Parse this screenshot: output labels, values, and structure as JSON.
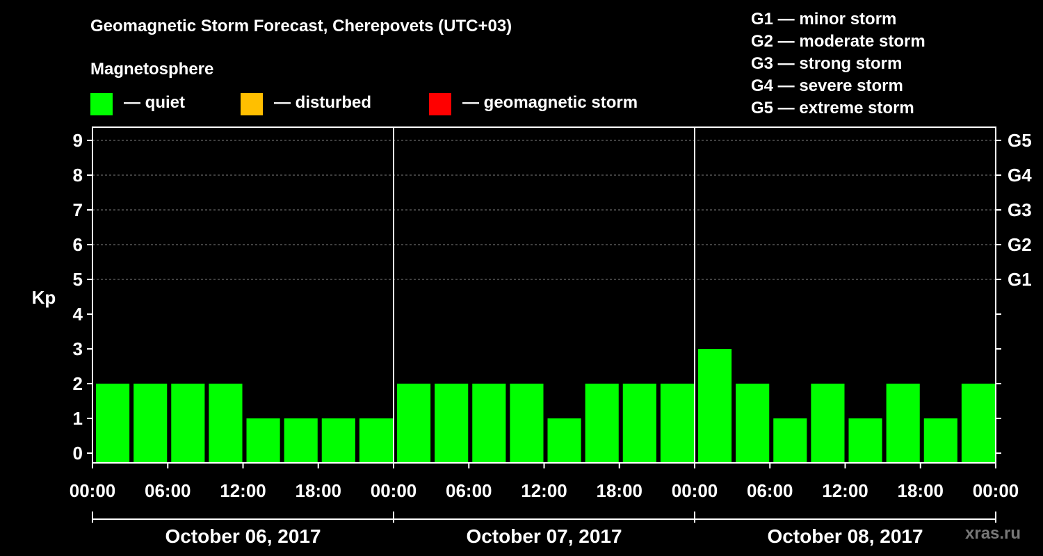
{
  "chart_data": {
    "type": "bar",
    "title": "Geomagnetic Storm Forecast, Cherepovets (UTC+03)",
    "ylabel": "Kp",
    "ylim": [
      0,
      9
    ],
    "y_ticks": [
      "0",
      "1",
      "2",
      "3",
      "4",
      "5",
      "6",
      "7",
      "8",
      "9"
    ],
    "right_ticks": [
      {
        "kp": 5,
        "label": "G1"
      },
      {
        "kp": 6,
        "label": "G2"
      },
      {
        "kp": 7,
        "label": "G3"
      },
      {
        "kp": 8,
        "label": "G4"
      },
      {
        "kp": 9,
        "label": "G5"
      }
    ],
    "x_tick_labels": [
      "00:00",
      "06:00",
      "12:00",
      "18:00",
      "00:00",
      "06:00",
      "12:00",
      "18:00",
      "00:00",
      "06:00",
      "12:00",
      "18:00",
      "00:00"
    ],
    "days": [
      "October 06, 2017",
      "October 07, 2017",
      "October 08, 2017"
    ],
    "bars_per_day": 8,
    "values": [
      2,
      2,
      2,
      2,
      1,
      1,
      1,
      1,
      2,
      2,
      2,
      2,
      1,
      2,
      2,
      2,
      3,
      2,
      1,
      2,
      1,
      2,
      1,
      2
    ],
    "bar_status": [
      "quiet",
      "quiet",
      "quiet",
      "quiet",
      "quiet",
      "quiet",
      "quiet",
      "quiet",
      "quiet",
      "quiet",
      "quiet",
      "quiet",
      "quiet",
      "quiet",
      "quiet",
      "quiet",
      "quiet",
      "quiet",
      "quiet",
      "quiet",
      "quiet",
      "quiet",
      "quiet",
      "quiet"
    ],
    "grid": "dashed at Kp 5-9"
  },
  "legend": {
    "heading": "Magnetosphere",
    "items": [
      {
        "label": "— quiet",
        "color": "#00ff00",
        "status": "quiet"
      },
      {
        "label": "— disturbed",
        "color": "#ffbf00",
        "status": "disturbed"
      },
      {
        "label": "— geomagnetic storm",
        "color": "#ff0000",
        "status": "storm"
      }
    ]
  },
  "g_scale": [
    "G1 — minor storm",
    "G2 — moderate storm",
    "G3 — strong storm",
    "G4 — severe storm",
    "G5 — extreme storm"
  ],
  "watermark": "xras.ru",
  "colors": {
    "background": "#000000",
    "axis": "#ffffff",
    "grid": "#808080"
  }
}
